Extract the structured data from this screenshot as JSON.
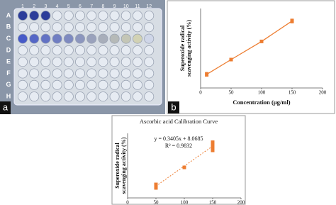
{
  "plate": {
    "columns": [
      "1",
      "2",
      "3",
      "4",
      "5",
      "6",
      "7",
      "8",
      "9",
      "10",
      "11",
      "12"
    ],
    "rows": [
      "A",
      "B",
      "C",
      "D",
      "E",
      "F",
      "G",
      "H"
    ],
    "panel_label": "a"
  },
  "chart_data": [
    {
      "type": "line",
      "panel_label": "b",
      "xlabel": "Concentration (µg/ml)",
      "ylabel": [
        "Superoxide radical",
        "scavenging activity (%)"
      ],
      "x": [
        10,
        50,
        100,
        150
      ],
      "values": [
        12,
        25,
        41,
        59
      ],
      "errors": [
        2,
        1,
        1,
        2
      ],
      "color": "#ed7d31",
      "xlim": [
        0,
        200
      ],
      "xticks": [
        0,
        50,
        100,
        150,
        200
      ],
      "ylim": [
        0,
        70
      ]
    },
    {
      "type": "scatter",
      "title": "Ascorbic acid Calibration Curve",
      "ylabel": [
        "Superoxide radical",
        "scavenging activity (%)"
      ],
      "x": [
        50,
        100,
        150
      ],
      "values": [
        25,
        41,
        59
      ],
      "errors": [
        3,
        1,
        5
      ],
      "color": "#ed7d31",
      "trendline": {
        "slope": 0.3405,
        "intercept": 8.0685,
        "label": "y = 0.3405x + 8.0685"
      },
      "r2_label": "R² = 0.9832",
      "xlim": [
        0,
        200
      ],
      "xticks": [
        0,
        50,
        100,
        150,
        200
      ],
      "ylim": [
        15,
        70
      ]
    }
  ]
}
